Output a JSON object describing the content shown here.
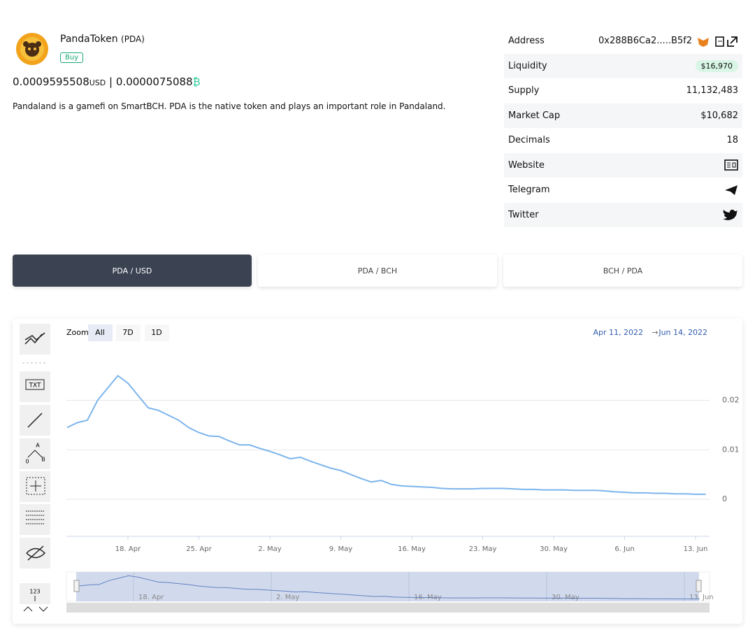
{
  "token": {
    "name": "PandaToken",
    "symbol": "(PDA)",
    "buy": "Buy",
    "price_usd": "0.0009595508",
    "usd": "USD",
    "separator": "|",
    "price_bch": "0.0000075088",
    "bch_symbol": "₿",
    "description": "Pandaland is a gamefi on SmartBCH. PDA is the native token and plays an important role in Pandaland."
  },
  "info": {
    "rows": [
      {
        "label": "Address",
        "value": "0x288B6Ca2.....B5f2"
      },
      {
        "label": "Liquidity",
        "value": "$16,970"
      },
      {
        "label": "Supply",
        "value": "11,132,483"
      },
      {
        "label": "Market Cap",
        "value": "$10,682"
      },
      {
        "label": "Decimals",
        "value": "18"
      },
      {
        "label": "Website"
      },
      {
        "label": "Telegram"
      },
      {
        "label": "Twitter"
      }
    ]
  },
  "tabs": [
    "PDA / USD",
    "PDA / BCH",
    "BCH / PDA"
  ],
  "toolbar": {
    "zoom": "Zoom",
    "buttons": [
      "All",
      "7D",
      "1D"
    ],
    "from": "Apr 11, 2022",
    "arrow": "→",
    "to": "Jun 14, 2022"
  },
  "tools": {
    "txt": "TXT",
    "a": "A",
    "b": "B",
    "zero": "0",
    "num": "123"
  },
  "chart_data": {
    "type": "line",
    "color": "#7cb5ec",
    "categories": [
      null,
      null,
      null,
      null,
      null,
      null,
      "18. Apr",
      null,
      null,
      null,
      null,
      null,
      null,
      "25. Apr",
      null,
      null,
      null,
      null,
      null,
      null,
      "2. May",
      null,
      null,
      null,
      null,
      null,
      null,
      "9. May",
      null,
      null,
      null,
      null,
      null,
      null,
      "16. May",
      null,
      null,
      null,
      null,
      null,
      null,
      "23. May",
      null,
      null,
      null,
      null,
      null,
      null,
      "30. May",
      null,
      null,
      null,
      null,
      null,
      null,
      "6. Jun",
      null,
      null,
      null,
      null,
      null,
      null,
      "13. Jun",
      null
    ],
    "values": [
      0.0145,
      0.0155,
      0.016,
      0.02,
      0.0225,
      0.025,
      0.0235,
      0.021,
      0.0185,
      0.018,
      0.017,
      0.016,
      0.0145,
      0.0135,
      0.0128,
      0.0127,
      0.0118,
      0.011,
      0.011,
      0.0103,
      0.0097,
      0.009,
      0.0082,
      0.0085,
      0.0077,
      0.007,
      0.0063,
      0.0058,
      0.005,
      0.0042,
      0.0035,
      0.0038,
      0.003,
      0.0027,
      0.0026,
      0.0025,
      0.0024,
      0.0022,
      0.0021,
      0.0021,
      0.0021,
      0.0022,
      0.0022,
      0.0022,
      0.0021,
      0.002,
      0.002,
      0.0019,
      0.0019,
      0.0019,
      0.0018,
      0.0018,
      0.0018,
      0.0017,
      0.0015,
      0.0014,
      0.0013,
      0.0013,
      0.0012,
      0.0012,
      0.0011,
      0.0011,
      0.001,
      0.001
    ],
    "ylim": [
      -0.0075,
      0.03
    ],
    "yticks": [
      0,
      0.01,
      0.02
    ],
    "grid": true
  }
}
